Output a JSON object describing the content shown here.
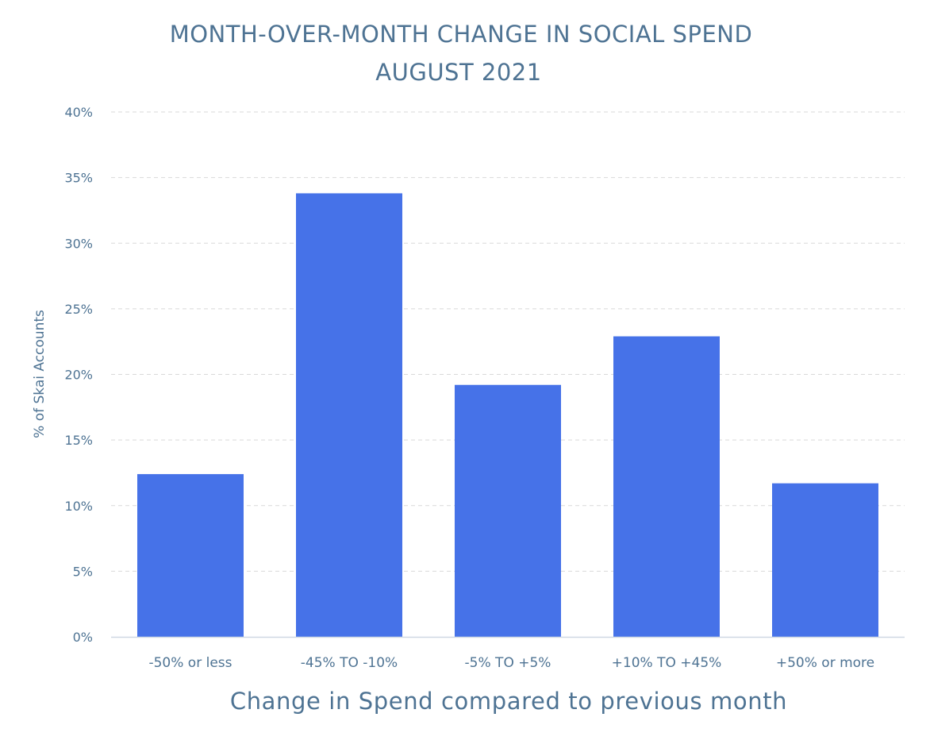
{
  "chart_data": {
    "type": "bar",
    "title": "MONTH-OVER-MONTH CHANGE IN SOCIAL SPEND",
    "subtitle": "AUGUST 2021",
    "xlabel": "Change in Spend compared to previous month",
    "ylabel": "% of Skai Accounts",
    "categories": [
      "-50% or less",
      "-45% TO -10%",
      "-5% TO +5%",
      "+10% TO +45%",
      "+50% or more"
    ],
    "values": [
      12.4,
      33.8,
      19.2,
      22.9,
      11.7
    ],
    "ylim": [
      0,
      40
    ],
    "yticks": [
      0,
      5,
      10,
      15,
      20,
      25,
      30,
      35,
      40
    ],
    "ytick_labels": [
      "0%",
      "5%",
      "10%",
      "15%",
      "20%",
      "25%",
      "30%",
      "35%",
      "40%"
    ],
    "grid": true,
    "legend": "none",
    "colors": {
      "bar": "#4672e8",
      "text": "#4e7393",
      "grid": "#d9d9d9",
      "axis": "#cfd8e3"
    }
  }
}
